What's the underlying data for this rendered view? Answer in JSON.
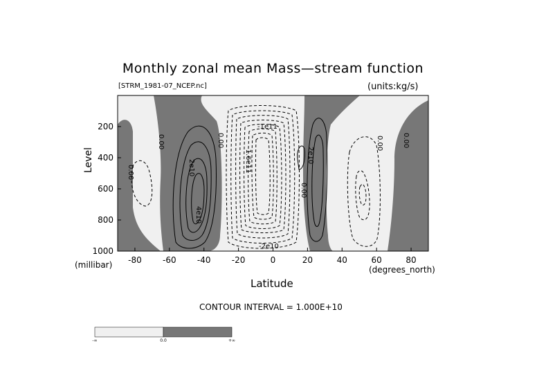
{
  "chart_data": {
    "type": "contour",
    "title": "Monthly zonal mean Mass—stream function",
    "file_label": "[STRM_1981-07_NCEP.nc]",
    "units_label": "(units:kg/s)",
    "xlabel": "Latitude",
    "ylabel": "Level",
    "x_unit": "(degrees_north)",
    "y_unit": "(millibar)",
    "contour_interval_text": "CONTOUR INTERVAL = 1.000E+10",
    "x_ticks": [
      "-80",
      "-60",
      "-40",
      "-20",
      "0",
      "20",
      "40",
      "60",
      "80"
    ],
    "y_ticks": [
      "200",
      "400",
      "600",
      "800",
      "1000"
    ],
    "xlim": [
      -90,
      90
    ],
    "ylim": [
      1000,
      0
    ],
    "contour_labels": [
      "0.00",
      "0.00",
      "2e10",
      "4e10",
      "0.00",
      "-1e11",
      "-1.6e11",
      "2e10",
      "0.00",
      "0.00",
      "0.00",
      "-2e10"
    ],
    "legend": {
      "label_left": "-∞",
      "label_mid": "0.0",
      "label_right": "+∞",
      "colors": [
        "#f0f0f0",
        "#777777"
      ]
    },
    "colors": {
      "negative_fill": "#f0f0f0",
      "positive_fill": "#777777",
      "contour": "#000000"
    }
  }
}
